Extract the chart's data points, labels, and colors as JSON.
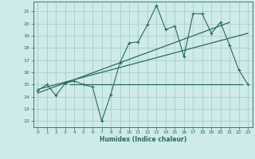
{
  "xlabel": "Humidex (Indice chaleur)",
  "ylabel": "",
  "background_color": "#ceeaea",
  "grid_color": "#aacece",
  "line_color": "#2a6b5e",
  "xlim": [
    -0.5,
    23.5
  ],
  "ylim": [
    11.5,
    21.8
  ],
  "yticks": [
    12,
    13,
    14,
    15,
    16,
    17,
    18,
    19,
    20,
    21
  ],
  "xticks": [
    0,
    1,
    2,
    3,
    4,
    5,
    6,
    7,
    8,
    9,
    10,
    11,
    12,
    13,
    14,
    15,
    16,
    17,
    18,
    19,
    20,
    21,
    22,
    23
  ],
  "main_x": [
    0,
    1,
    2,
    3,
    4,
    5,
    6,
    7,
    8,
    9,
    10,
    11,
    12,
    13,
    14,
    15,
    16,
    17,
    18,
    19,
    20,
    21,
    22,
    23
  ],
  "main_y": [
    14.5,
    15.0,
    14.1,
    15.1,
    15.3,
    15.0,
    14.8,
    12.0,
    14.2,
    16.8,
    18.4,
    18.5,
    19.9,
    21.5,
    19.5,
    19.8,
    17.3,
    20.8,
    20.8,
    19.2,
    20.1,
    18.2,
    16.2,
    15.0
  ],
  "trend1_x": [
    0,
    23
  ],
  "trend1_y": [
    14.6,
    19.2
  ],
  "trend2_x": [
    0,
    21
  ],
  "trend2_y": [
    14.3,
    20.1
  ],
  "hline_y": 15.0,
  "hline_x_start": 3.5,
  "hline_x_end": 22.5
}
